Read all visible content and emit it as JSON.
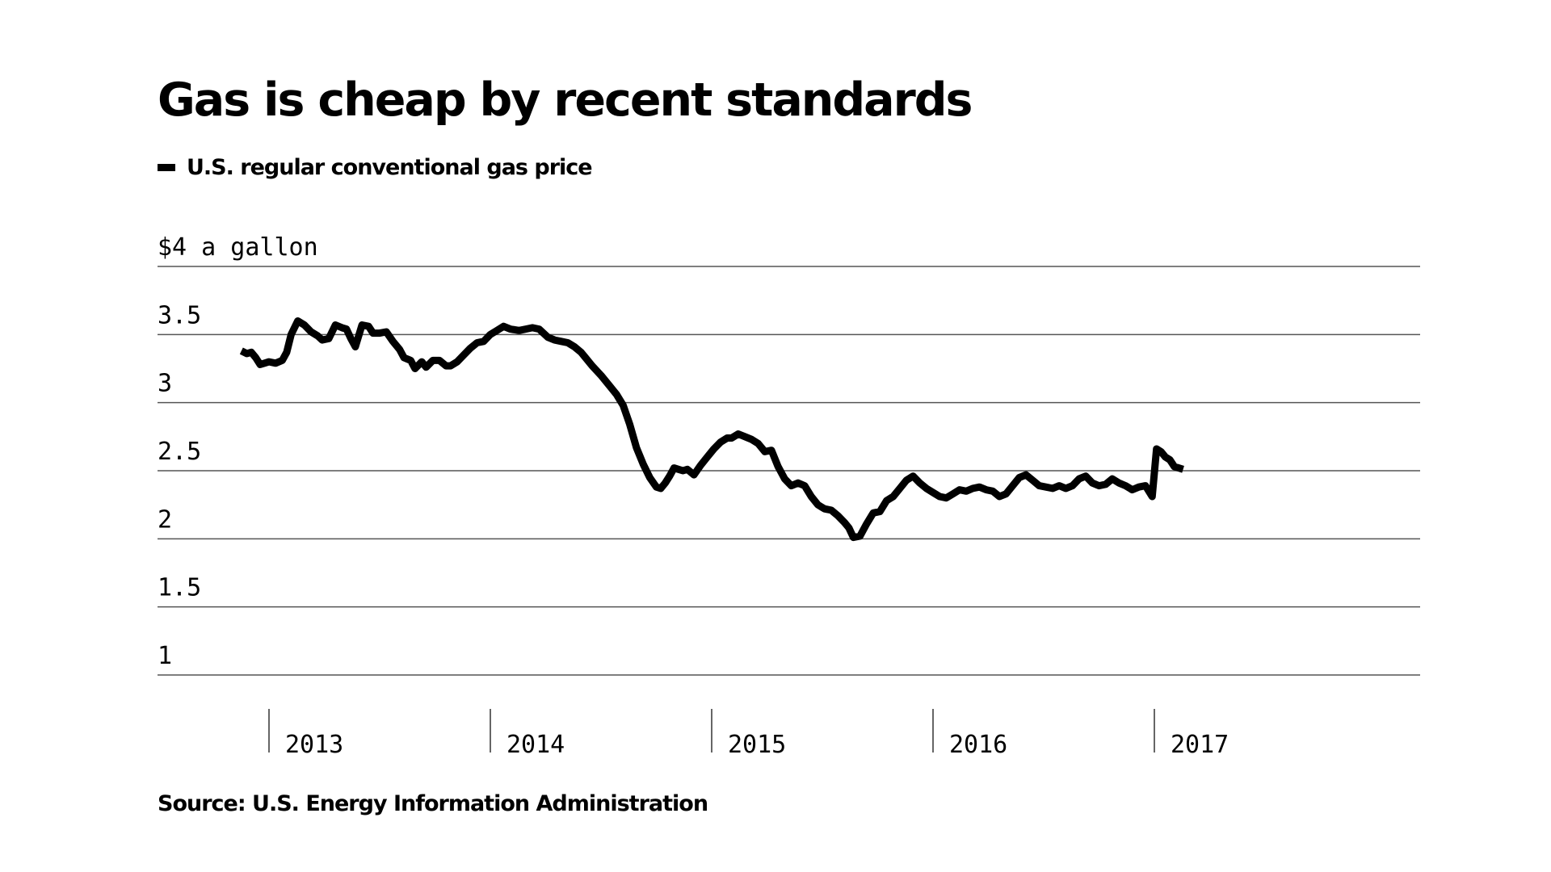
{
  "chart_data": {
    "type": "line",
    "title": "Gas is cheap by recent standards",
    "source": "Source: U.S. Energy Information Administration",
    "unit_label": "$4 a gallon",
    "y_ticks": [
      {
        "value": 4,
        "label": "$4 a gallon"
      },
      {
        "value": 3.5,
        "label": "3.5"
      },
      {
        "value": 3,
        "label": "3"
      },
      {
        "value": 2.5,
        "label": "2.5"
      },
      {
        "value": 2,
        "label": "2"
      },
      {
        "value": 1.5,
        "label": "1.5"
      },
      {
        "value": 1,
        "label": "1"
      }
    ],
    "ylim": [
      1,
      4
    ],
    "xlim": [
      2012.5,
      2018.2
    ],
    "x_ticks": [
      {
        "value": 2013,
        "label": "2013"
      },
      {
        "value": 2014,
        "label": "2014"
      },
      {
        "value": 2015,
        "label": "2015"
      },
      {
        "value": 2016,
        "label": "2016"
      },
      {
        "value": 2017,
        "label": "2017"
      }
    ],
    "grid": true,
    "colors": {
      "line": "#000000",
      "grid": "#555555",
      "background": "#ffffff"
    },
    "series": [
      {
        "name": "U.S. regular conventional gas price",
        "points": [
          [
            2012.875,
            3.38
          ],
          [
            2012.9,
            3.36
          ],
          [
            2012.92,
            3.37
          ],
          [
            2012.94,
            3.33
          ],
          [
            2012.96,
            3.28
          ],
          [
            2012.98,
            3.29
          ],
          [
            2013.0,
            3.3
          ],
          [
            2013.03,
            3.29
          ],
          [
            2013.06,
            3.31
          ],
          [
            2013.08,
            3.37
          ],
          [
            2013.1,
            3.5
          ],
          [
            2013.13,
            3.6
          ],
          [
            2013.16,
            3.57
          ],
          [
            2013.19,
            3.52
          ],
          [
            2013.22,
            3.49
          ],
          [
            2013.24,
            3.46
          ],
          [
            2013.27,
            3.47
          ],
          [
            2013.3,
            3.57
          ],
          [
            2013.33,
            3.55
          ],
          [
            2013.35,
            3.54
          ],
          [
            2013.37,
            3.47
          ],
          [
            2013.39,
            3.41
          ],
          [
            2013.42,
            3.57
          ],
          [
            2013.45,
            3.56
          ],
          [
            2013.47,
            3.51
          ],
          [
            2013.5,
            3.51
          ],
          [
            2013.53,
            3.52
          ],
          [
            2013.56,
            3.45
          ],
          [
            2013.59,
            3.39
          ],
          [
            2013.61,
            3.33
          ],
          [
            2013.64,
            3.31
          ],
          [
            2013.66,
            3.25
          ],
          [
            2013.69,
            3.3
          ],
          [
            2013.71,
            3.26
          ],
          [
            2013.74,
            3.31
          ],
          [
            2013.77,
            3.31
          ],
          [
            2013.8,
            3.27
          ],
          [
            2013.82,
            3.27
          ],
          [
            2013.85,
            3.3
          ],
          [
            2013.88,
            3.35
          ],
          [
            2013.91,
            3.4
          ],
          [
            2013.94,
            3.44
          ],
          [
            2013.97,
            3.45
          ],
          [
            2014.0,
            3.5
          ],
          [
            2014.03,
            3.53
          ],
          [
            2014.06,
            3.56
          ],
          [
            2014.09,
            3.54
          ],
          [
            2014.13,
            3.53
          ],
          [
            2014.16,
            3.54
          ],
          [
            2014.19,
            3.55
          ],
          [
            2014.22,
            3.54
          ],
          [
            2014.26,
            3.48
          ],
          [
            2014.29,
            3.46
          ],
          [
            2014.32,
            3.45
          ],
          [
            2014.35,
            3.44
          ],
          [
            2014.38,
            3.41
          ],
          [
            2014.41,
            3.37
          ],
          [
            2014.43,
            3.33
          ],
          [
            2014.46,
            3.27
          ],
          [
            2014.5,
            3.2
          ],
          [
            2014.54,
            3.12
          ],
          [
            2014.57,
            3.06
          ],
          [
            2014.6,
            2.98
          ],
          [
            2014.63,
            2.84
          ],
          [
            2014.66,
            2.67
          ],
          [
            2014.69,
            2.55
          ],
          [
            2014.72,
            2.45
          ],
          [
            2014.75,
            2.38
          ],
          [
            2014.77,
            2.37
          ],
          [
            2014.79,
            2.41
          ],
          [
            2014.81,
            2.46
          ],
          [
            2014.83,
            2.52
          ],
          [
            2014.85,
            2.51
          ],
          [
            2014.87,
            2.5
          ],
          [
            2014.89,
            2.51
          ],
          [
            2014.92,
            2.47
          ],
          [
            2014.95,
            2.54
          ],
          [
            2014.98,
            2.6
          ],
          [
            2015.01,
            2.66
          ],
          [
            2015.04,
            2.71
          ],
          [
            2015.07,
            2.74
          ],
          [
            2015.09,
            2.74
          ],
          [
            2015.12,
            2.77
          ],
          [
            2015.15,
            2.75
          ],
          [
            2015.18,
            2.73
          ],
          [
            2015.21,
            2.7
          ],
          [
            2015.24,
            2.64
          ],
          [
            2015.27,
            2.65
          ],
          [
            2015.3,
            2.53
          ],
          [
            2015.33,
            2.44
          ],
          [
            2015.36,
            2.39
          ],
          [
            2015.39,
            2.41
          ],
          [
            2015.42,
            2.39
          ],
          [
            2015.45,
            2.31
          ],
          [
            2015.48,
            2.25
          ],
          [
            2015.51,
            2.22
          ],
          [
            2015.54,
            2.21
          ],
          [
            2015.57,
            2.17
          ],
          [
            2015.6,
            2.12
          ],
          [
            2015.62,
            2.08
          ],
          [
            2015.64,
            2.01
          ],
          [
            2015.67,
            2.02
          ],
          [
            2015.7,
            2.11
          ],
          [
            2015.73,
            2.19
          ],
          [
            2015.76,
            2.2
          ],
          [
            2015.79,
            2.28
          ],
          [
            2015.82,
            2.31
          ],
          [
            2015.85,
            2.37
          ],
          [
            2015.88,
            2.43
          ],
          [
            2015.91,
            2.46
          ],
          [
            2015.94,
            2.41
          ],
          [
            2015.97,
            2.37
          ],
          [
            2016.0,
            2.34
          ],
          [
            2016.03,
            2.31
          ],
          [
            2016.06,
            2.3
          ],
          [
            2016.09,
            2.33
          ],
          [
            2016.12,
            2.36
          ],
          [
            2016.15,
            2.35
          ],
          [
            2016.18,
            2.37
          ],
          [
            2016.21,
            2.38
          ],
          [
            2016.24,
            2.36
          ],
          [
            2016.27,
            2.35
          ],
          [
            2016.3,
            2.31
          ],
          [
            2016.33,
            2.33
          ],
          [
            2016.36,
            2.39
          ],
          [
            2016.39,
            2.45
          ],
          [
            2016.42,
            2.47
          ],
          [
            2016.45,
            2.43
          ],
          [
            2016.48,
            2.39
          ],
          [
            2016.51,
            2.38
          ],
          [
            2016.54,
            2.37
          ],
          [
            2016.57,
            2.39
          ],
          [
            2016.6,
            2.37
          ],
          [
            2016.63,
            2.39
          ],
          [
            2016.66,
            2.44
          ],
          [
            2016.69,
            2.46
          ],
          [
            2016.72,
            2.41
          ],
          [
            2016.75,
            2.39
          ],
          [
            2016.78,
            2.4
          ],
          [
            2016.81,
            2.44
          ],
          [
            2016.84,
            2.41
          ],
          [
            2016.87,
            2.39
          ],
          [
            2016.9,
            2.36
          ],
          [
            2016.93,
            2.38
          ],
          [
            2016.96,
            2.39
          ],
          [
            2016.99,
            2.31
          ],
          [
            2017.01,
            2.66
          ],
          [
            2017.03,
            2.64
          ],
          [
            2017.05,
            2.6
          ],
          [
            2017.07,
            2.58
          ],
          [
            2017.09,
            2.53
          ],
          [
            2017.11,
            2.52
          ],
          [
            2017.13,
            2.51
          ]
        ]
      }
    ]
  }
}
